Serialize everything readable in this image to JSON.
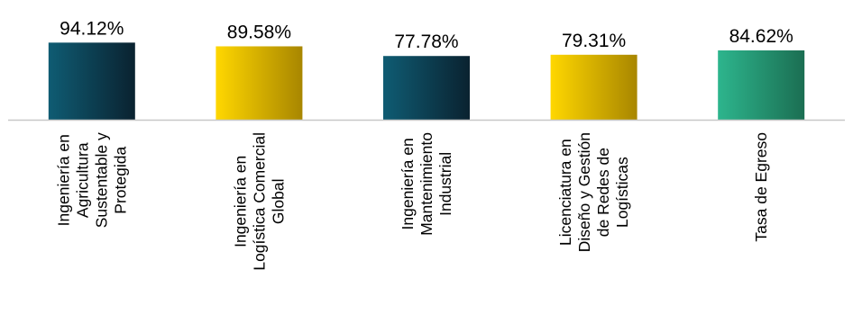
{
  "chart_data": {
    "type": "bar",
    "categories": [
      [
        "Ingeniería en",
        "Agricultura",
        "Sustentable y",
        "Protegida"
      ],
      [
        "Ingeniería en",
        "Logística Comercial",
        "Global"
      ],
      [
        "Ingeniería en",
        "Mantenimiento",
        "Industrial"
      ],
      [
        "Licenciatura en",
        "Diseño y Gestión",
        "de Redes de",
        "Logísticas"
      ],
      [
        "Tasa de Egreso"
      ]
    ],
    "values": [
      94.12,
      89.58,
      77.78,
      79.31,
      84.62
    ],
    "value_labels": [
      "94.12%",
      "89.58%",
      "77.78%",
      "79.31%",
      "84.62%"
    ],
    "ylim": [
      0,
      100
    ],
    "title": "",
    "xlabel": "",
    "ylabel": "",
    "grid": false,
    "bar_colors": [
      {
        "from": "#0f5c73",
        "to": "#0a2230"
      },
      {
        "from": "#ffd700",
        "to": "#a88600"
      },
      {
        "from": "#0f5c73",
        "to": "#0a2230"
      },
      {
        "from": "#ffd700",
        "to": "#a88600"
      },
      {
        "from": "#2db58d",
        "to": "#1b6e52"
      }
    ],
    "axis_color": "#c8c8c8"
  }
}
